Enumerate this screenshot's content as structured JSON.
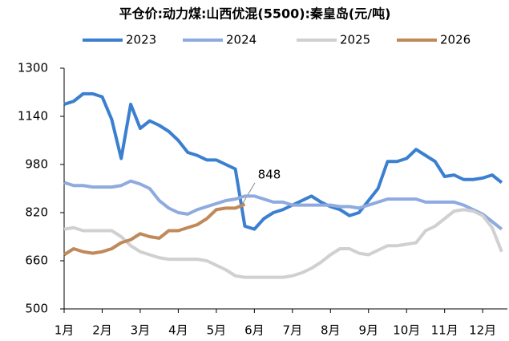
{
  "chart_data": {
    "type": "line",
    "title": "平仓价:动力煤:山西优混(5500):秦皇岛(元/吨)",
    "x": [
      1,
      1.25,
      1.5,
      1.75,
      2,
      2.25,
      2.5,
      2.75,
      3,
      3.25,
      3.5,
      3.75,
      4,
      4.25,
      4.5,
      4.75,
      5,
      5.25,
      5.5,
      5.75,
      6,
      6.25,
      6.5,
      6.75,
      7,
      7.25,
      7.5,
      7.75,
      8,
      8.25,
      8.5,
      8.75,
      9,
      9.25,
      9.5,
      9.75,
      10,
      10.25,
      10.5,
      10.75,
      11,
      11.25,
      11.5,
      11.75,
      12,
      12.25,
      12.5
    ],
    "xlim": [
      1,
      12.65
    ],
    "xticks": [
      {
        "value": 1,
        "label": "1月"
      },
      {
        "value": 2,
        "label": "2月"
      },
      {
        "value": 3,
        "label": "3月"
      },
      {
        "value": 4,
        "label": "4月"
      },
      {
        "value": 5,
        "label": "5月"
      },
      {
        "value": 6,
        "label": "6月"
      },
      {
        "value": 7,
        "label": "7月"
      },
      {
        "value": 8,
        "label": "8月"
      },
      {
        "value": 9,
        "label": "9月"
      },
      {
        "value": 10,
        "label": "10月"
      },
      {
        "value": 11,
        "label": "11月"
      },
      {
        "value": 12,
        "label": "12月"
      }
    ],
    "ylim": [
      500,
      1300
    ],
    "yticks": [
      500,
      660,
      820,
      980,
      1140,
      1300
    ],
    "grid": false,
    "legend": "top",
    "series": [
      {
        "name": "2023",
        "color": "#3a7fd0",
        "values": [
          1180,
          1190,
          1215,
          1215,
          1205,
          1130,
          1000,
          1180,
          1100,
          1125,
          1110,
          1090,
          1060,
          1020,
          1010,
          995,
          995,
          980,
          965,
          775,
          765,
          800,
          820,
          830,
          845,
          860,
          875,
          855,
          840,
          830,
          810,
          820,
          860,
          900,
          990,
          990,
          1000,
          1030,
          1010,
          990,
          940,
          945,
          930,
          930,
          935,
          945,
          920
        ]
      },
      {
        "name": "2024",
        "color": "#8eaadf",
        "values": [
          920,
          910,
          910,
          905,
          905,
          905,
          910,
          925,
          915,
          900,
          860,
          835,
          820,
          815,
          830,
          840,
          850,
          860,
          865,
          875,
          875,
          865,
          855,
          855,
          845,
          845,
          845,
          845,
          845,
          840,
          840,
          835,
          845,
          855,
          865,
          865,
          865,
          865,
          855,
          855,
          855,
          855,
          845,
          830,
          815,
          790,
          765
        ]
      },
      {
        "name": "2025",
        "color": "#d0d0d0",
        "values": [
          765,
          770,
          760,
          760,
          760,
          760,
          740,
          710,
          690,
          680,
          670,
          665,
          665,
          665,
          665,
          660,
          645,
          630,
          610,
          605,
          605,
          605,
          605,
          605,
          610,
          620,
          635,
          655,
          680,
          700,
          700,
          685,
          680,
          695,
          710,
          710,
          715,
          720,
          760,
          775,
          800,
          825,
          830,
          825,
          810,
          770,
          690
        ]
      },
      {
        "name": "2026",
        "color": "#c0895a",
        "values": [
          680,
          700,
          690,
          685,
          690,
          700,
          720,
          730,
          750,
          740,
          735,
          760,
          760,
          770,
          780,
          800,
          830,
          835,
          835,
          848,
          null,
          null,
          null,
          null,
          null,
          null,
          null,
          null,
          null,
          null,
          null,
          null,
          null,
          null,
          null,
          null,
          null,
          null,
          null,
          null,
          null,
          null,
          null,
          null,
          null,
          null,
          null
        ]
      }
    ]
  }
}
